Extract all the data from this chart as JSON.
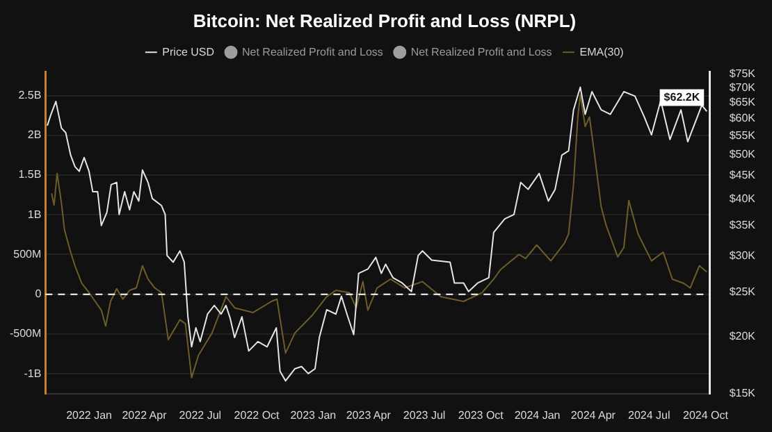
{
  "chart_data": {
    "type": "line",
    "title": "Bitcoin: Net Realized Profit and Loss (NRPL)",
    "xlim": [
      "2021-10-22",
      "2024-10-08"
    ],
    "xticks": [
      {
        "value": "2022-01-01",
        "label": "2022 Jan"
      },
      {
        "value": "2022-04-01",
        "label": "2022 Apr"
      },
      {
        "value": "2022-07-01",
        "label": "2022 Jul"
      },
      {
        "value": "2022-10-01",
        "label": "2022 Oct"
      },
      {
        "value": "2023-01-01",
        "label": "2023 Jan"
      },
      {
        "value": "2023-04-01",
        "label": "2023 Apr"
      },
      {
        "value": "2023-07-01",
        "label": "2023 Jul"
      },
      {
        "value": "2023-10-01",
        "label": "2023 Oct"
      },
      {
        "value": "2024-01-01",
        "label": "2024 Jan"
      },
      {
        "value": "2024-04-01",
        "label": "2024 Apr"
      },
      {
        "value": "2024-07-01",
        "label": "2024 Jul"
      },
      {
        "value": "2024-10-01",
        "label": "2024 Oct"
      }
    ],
    "ylim": [
      -1250000000,
      2800000000
    ],
    "yticks": [
      {
        "value": -1000000000,
        "label": "-1B"
      },
      {
        "value": -500000000,
        "label": "-500M"
      },
      0,
      {
        "value": 500000000,
        "label": "500M"
      },
      {
        "value": 1000000000,
        "label": "1B"
      },
      {
        "value": 1500000000,
        "label": "1.5B"
      },
      {
        "value": 2000000000,
        "label": "2B"
      },
      {
        "value": 2500000000,
        "label": "2.5B"
      }
    ],
    "y2lim": [
      15000,
      76000
    ],
    "y2ticks": [
      {
        "value": 15000,
        "label": "$15K"
      },
      {
        "value": 20000,
        "label": "$20K"
      },
      {
        "value": 25000,
        "label": "$25K"
      },
      {
        "value": 30000,
        "label": "$30K"
      },
      {
        "value": 35000,
        "label": "$35K"
      },
      {
        "value": 40000,
        "label": "$40K"
      },
      {
        "value": 45000,
        "label": "$45K"
      },
      {
        "value": 50000,
        "label": "$50K"
      },
      {
        "value": 55000,
        "label": "$55K"
      },
      {
        "value": 60000,
        "label": "$60K"
      },
      {
        "value": 65000,
        "label": "$65K"
      },
      {
        "value": 70000,
        "label": "$70K"
      },
      {
        "value": 75000,
        "label": "$75K"
      }
    ],
    "log": "y2",
    "grid": "y",
    "legend": "top",
    "ref_lines": [
      {
        "axis": "y",
        "value": 0,
        "color": "#ffffff",
        "line_style": "dashed"
      }
    ],
    "series": [
      {
        "name": "Price USD",
        "color": "#e6e6e6",
        "axis": "y2",
        "x": [
          "2021-10-25",
          "2021-10-31",
          "2021-11-08",
          "2021-11-17",
          "2021-11-24",
          "2021-12-02",
          "2021-12-09",
          "2021-12-16",
          "2021-12-24",
          "2022-01-01",
          "2022-01-07",
          "2022-01-15",
          "2022-01-21",
          "2022-01-30",
          "2022-02-06",
          "2022-02-15",
          "2022-02-19",
          "2022-02-28",
          "2022-03-08",
          "2022-03-15",
          "2022-03-23",
          "2022-03-29",
          "2022-04-07",
          "2022-04-14",
          "2022-04-29",
          "2022-05-05",
          "2022-05-08",
          "2022-05-18",
          "2022-05-29",
          "2022-06-05",
          "2022-06-11",
          "2022-06-17",
          "2022-06-24",
          "2022-07-01",
          "2022-07-13",
          "2022-07-24",
          "2022-08-04",
          "2022-08-12",
          "2022-08-19",
          "2022-08-26",
          "2022-09-07",
          "2022-09-18",
          "2022-10-03",
          "2022-10-18",
          "2022-11-02",
          "2022-11-08",
          "2022-11-17",
          "2022-12-02",
          "2022-12-13",
          "2022-12-24",
          "2023-01-04",
          "2023-01-11",
          "2023-01-23",
          "2023-02-07",
          "2023-02-16",
          "2023-02-25",
          "2023-03-08",
          "2023-03-16",
          "2023-03-31",
          "2023-04-13",
          "2023-04-22",
          "2023-04-29",
          "2023-05-11",
          "2023-05-26",
          "2023-06-10",
          "2023-06-21",
          "2023-06-28",
          "2023-07-13",
          "2023-08-12",
          "2023-08-19",
          "2023-09-03",
          "2023-09-11",
          "2023-09-26",
          "2023-10-14",
          "2023-10-22",
          "2023-11-09",
          "2023-11-24",
          "2023-12-05",
          "2023-12-17",
          "2024-01-04",
          "2024-01-19",
          "2024-01-30",
          "2024-02-10",
          "2024-02-21",
          "2024-02-29",
          "2024-03-11",
          "2024-03-19",
          "2024-03-30",
          "2024-04-14",
          "2024-04-29",
          "2024-05-21",
          "2024-06-08",
          "2024-06-23",
          "2024-07-05",
          "2024-07-20",
          "2024-08-04",
          "2024-08-22",
          "2024-09-02",
          "2024-09-25",
          "2024-10-03"
        ],
        "values": [
          57900,
          61300,
          65400,
          57200,
          55900,
          49900,
          47100,
          46000,
          49300,
          46000,
          41500,
          41500,
          35000,
          37400,
          43000,
          43500,
          37000,
          41500,
          37900,
          41500,
          39600,
          46300,
          43500,
          40100,
          38700,
          37000,
          30100,
          29100,
          30800,
          29100,
          22100,
          19000,
          20900,
          19500,
          22400,
          23400,
          22400,
          23400,
          21900,
          19900,
          22100,
          18600,
          19500,
          19000,
          20900,
          16800,
          16000,
          17000,
          17200,
          16600,
          17000,
          19900,
          22900,
          22400,
          24500,
          22400,
          20200,
          27500,
          28100,
          29800,
          27500,
          28800,
          26900,
          26200,
          25100,
          30100,
          30800,
          29400,
          29100,
          26200,
          26200,
          25100,
          26200,
          26900,
          33800,
          36200,
          37000,
          43500,
          42000,
          45500,
          39600,
          42000,
          49900,
          51000,
          62700,
          70300,
          61300,
          68700,
          62700,
          61300,
          68700,
          67200,
          60600,
          55300,
          65700,
          54000,
          62700,
          53400,
          64200,
          62200
        ],
        "value_labels": [
          null,
          null,
          null,
          null,
          null,
          null,
          null,
          null,
          null,
          null,
          null,
          null,
          null,
          null,
          null,
          null,
          null,
          null,
          null,
          null,
          null,
          null,
          null,
          null,
          null,
          null,
          null,
          null,
          null,
          null,
          null,
          null,
          null,
          null,
          null,
          null,
          null,
          null,
          null,
          null,
          null,
          null,
          null,
          null,
          null,
          null,
          null,
          null,
          null,
          null,
          null,
          null,
          null,
          null,
          null,
          null,
          null,
          null,
          null,
          null,
          null,
          null,
          null,
          null,
          null,
          null,
          null,
          null,
          null,
          null,
          null,
          null,
          null,
          null,
          null,
          null,
          null,
          null,
          null,
          null,
          null,
          null,
          null,
          null,
          null,
          null,
          null,
          null,
          null,
          null,
          null,
          null,
          null,
          null,
          null,
          null,
          null,
          null,
          null,
          "$62.2K"
        ]
      },
      {
        "name": "Net Realized Profit and Loss",
        "color": "#9e9e9e"
      },
      {
        "name": "Net Realized Profit and Loss",
        "color": "#9e9e9e"
      },
      {
        "name": "EMA(30)",
        "color": "#6e5c2a",
        "x": [
          "2021-11-01",
          "2021-11-05",
          "2021-11-10",
          "2021-11-17",
          "2021-11-22",
          "2021-12-02",
          "2021-12-09",
          "2021-12-20",
          "2022-01-01",
          "2022-01-11",
          "2022-01-21",
          "2022-01-28",
          "2022-02-05",
          "2022-02-15",
          "2022-02-25",
          "2022-03-08",
          "2022-03-19",
          "2022-03-29",
          "2022-04-07",
          "2022-04-18",
          "2022-04-29",
          "2022-05-10",
          "2022-05-29",
          "2022-06-07",
          "2022-06-17",
          "2022-06-28",
          "2022-07-20",
          "2022-08-12",
          "2022-08-26",
          "2022-09-25",
          "2022-10-25",
          "2022-11-03",
          "2022-11-17",
          "2022-12-02",
          "2022-12-31",
          "2023-01-23",
          "2023-02-07",
          "2023-03-01",
          "2023-03-12",
          "2023-03-23",
          "2023-03-31",
          "2023-04-15",
          "2023-05-07",
          "2023-05-30",
          "2023-06-28",
          "2023-07-28",
          "2023-09-03",
          "2023-10-03",
          "2023-10-22",
          "2023-11-02",
          "2023-12-02",
          "2023-12-13",
          "2023-12-31",
          "2024-01-23",
          "2024-02-14",
          "2024-02-21",
          "2024-02-29",
          "2024-03-07",
          "2024-03-11",
          "2024-03-19",
          "2024-03-26",
          "2024-04-03",
          "2024-04-14",
          "2024-04-22",
          "2024-05-11",
          "2024-05-21",
          "2024-05-29",
          "2024-06-13",
          "2024-07-05",
          "2024-07-24",
          "2024-08-08",
          "2024-08-26",
          "2024-09-06",
          "2024-09-21",
          "2024-10-03"
        ],
        "values": [
          1270000000.0,
          1120000000.0,
          1520000000.0,
          1150000000.0,
          810000000.0,
          530000000.0,
          360000000.0,
          140000000.0,
          20000000.0,
          -90000000.0,
          -200000000.0,
          -400000000.0,
          -90000000.0,
          70000000.0,
          -60000000.0,
          50000000.0,
          80000000.0,
          360000000.0,
          190000000.0,
          80000000.0,
          20000000.0,
          -570000000.0,
          -320000000.0,
          -370000000.0,
          -1050000000.0,
          -770000000.0,
          -490000000.0,
          -30000000.0,
          -170000000.0,
          -230000000.0,
          -90000000.0,
          -60000000.0,
          -740000000.0,
          -490000000.0,
          -260000000.0,
          -30000000.0,
          50000000.0,
          20000000.0,
          -170000000.0,
          160000000.0,
          -200000000.0,
          80000000.0,
          190000000.0,
          80000000.0,
          160000000.0,
          -30000000.0,
          -90000000.0,
          20000000.0,
          190000000.0,
          310000000.0,
          500000000.0,
          450000000.0,
          620000000.0,
          420000000.0,
          640000000.0,
          760000000.0,
          1380000000.0,
          2230000000.0,
          2510000000.0,
          2110000000.0,
          2230000000.0,
          1770000000.0,
          1100000000.0,
          870000000.0,
          470000000.0,
          590000000.0,
          1180000000.0,
          760000000.0,
          420000000.0,
          530000000.0,
          190000000.0,
          140000000.0,
          80000000.0,
          360000000.0,
          280000000.0
        ]
      }
    ]
  }
}
